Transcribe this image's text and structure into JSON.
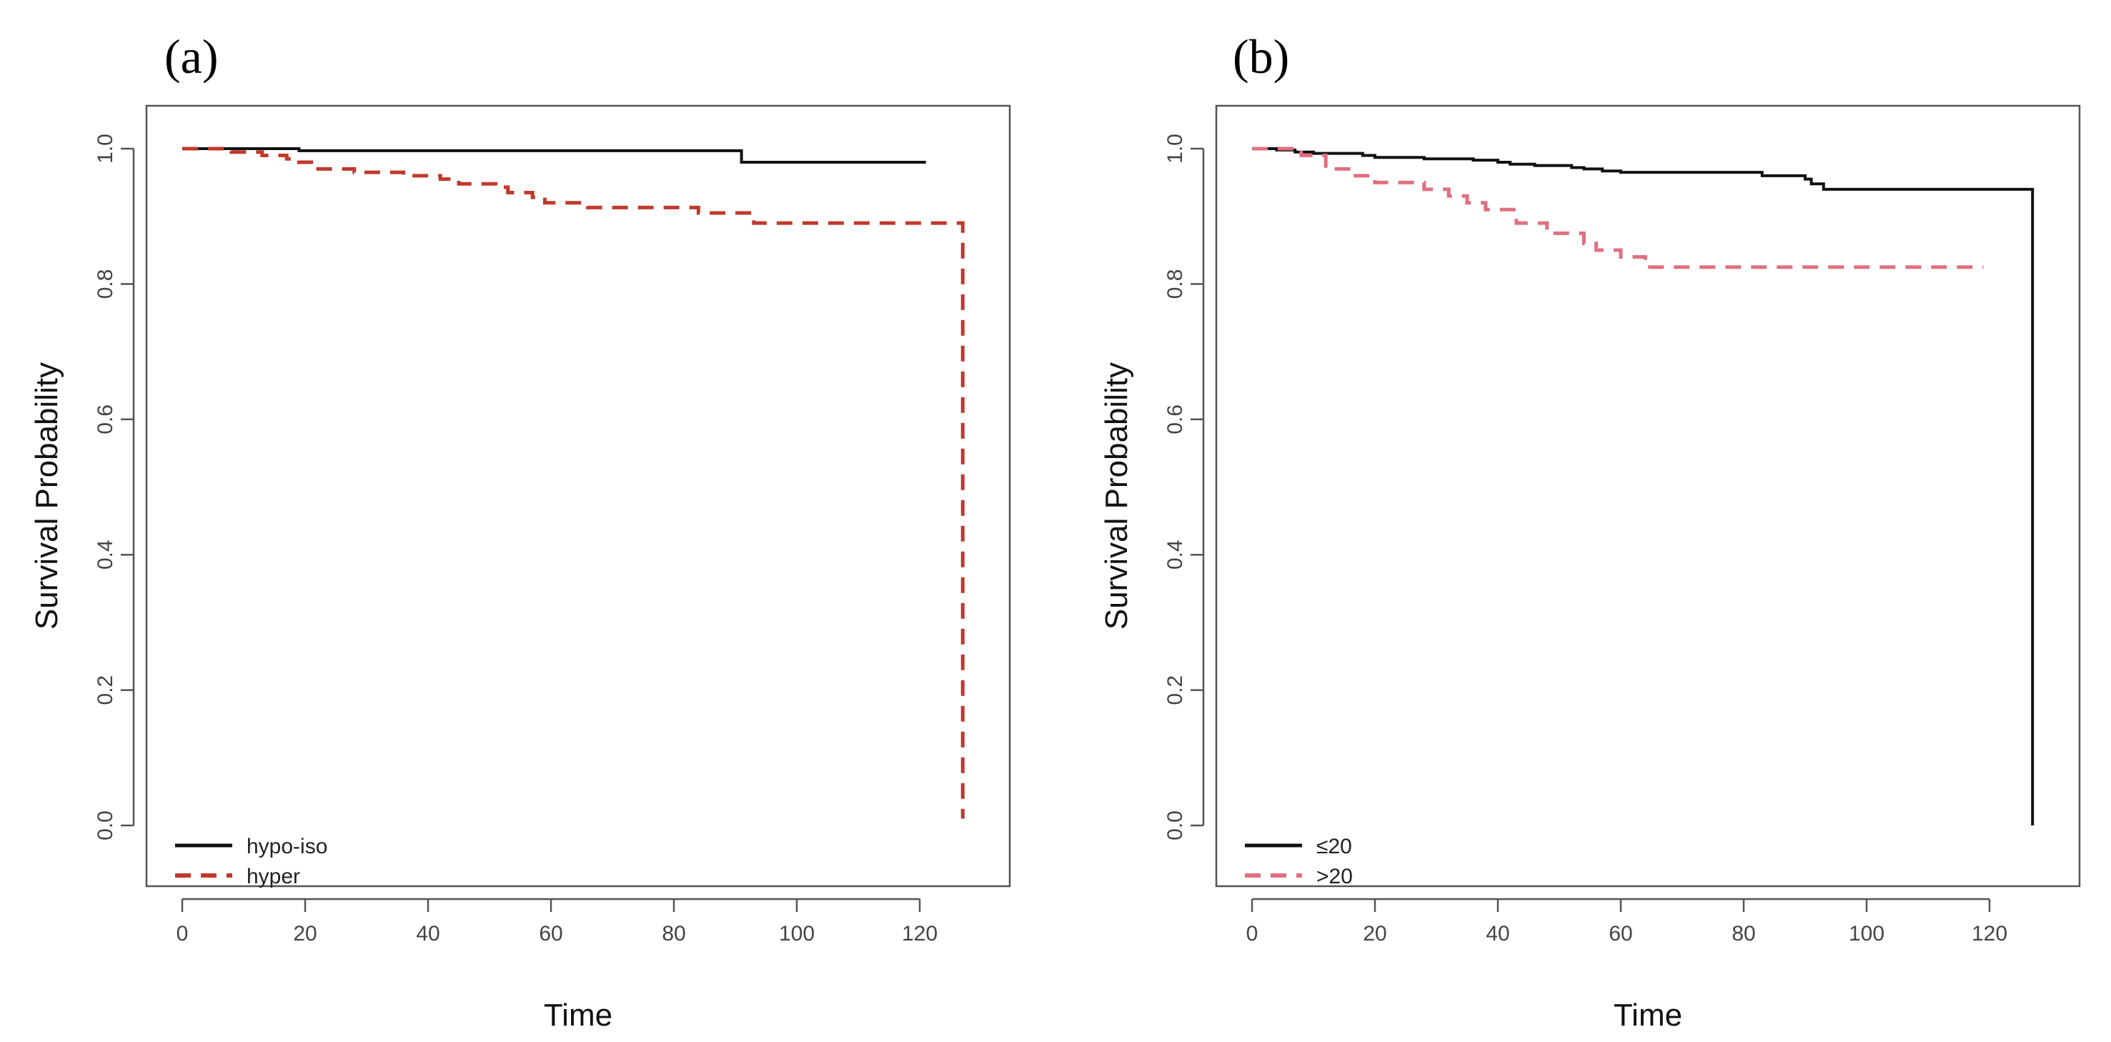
{
  "chart_data": [
    {
      "type": "line",
      "subtype": "kaplan-meier",
      "panel_label": "(a)",
      "xlabel": "Time",
      "ylabel": "Survival Probability",
      "xlim": [
        0,
        130
      ],
      "ylim": [
        0,
        1
      ],
      "xticks": [
        0,
        20,
        40,
        60,
        80,
        100,
        120
      ],
      "yticks": [
        "0.0",
        "0.2",
        "0.4",
        "0.6",
        "0.8",
        "1.0"
      ],
      "legend_position": "bottom-left",
      "series": [
        {
          "name": "hypo-iso",
          "color": "#111111",
          "dash": "solid",
          "steps": [
            [
              0,
              1.0
            ],
            [
              19,
              0.997
            ],
            [
              91,
              0.98
            ],
            [
              121,
              0.98
            ]
          ]
        },
        {
          "name": "hyper",
          "color": "#c0392b",
          "dash": "dashed",
          "steps": [
            [
              0,
              1.0
            ],
            [
              8,
              0.995
            ],
            [
              13,
              0.99
            ],
            [
              17,
              0.985
            ],
            [
              19,
              0.98
            ],
            [
              21,
              0.97
            ],
            [
              28,
              0.965
            ],
            [
              36,
              0.96
            ],
            [
              42,
              0.955
            ],
            [
              45,
              0.948
            ],
            [
              51,
              0.943
            ],
            [
              53,
              0.935
            ],
            [
              57,
              0.928
            ],
            [
              59,
              0.92
            ],
            [
              66,
              0.913
            ],
            [
              84,
              0.905
            ],
            [
              93,
              0.89
            ],
            [
              127,
              0.89
            ],
            [
              127,
              0.01
            ]
          ]
        }
      ]
    },
    {
      "type": "line",
      "subtype": "kaplan-meier",
      "panel_label": "(b)",
      "xlabel": "Time",
      "ylabel": "Survival Probability",
      "xlim": [
        0,
        130
      ],
      "ylim": [
        0,
        1
      ],
      "xticks": [
        0,
        20,
        40,
        60,
        80,
        100,
        120
      ],
      "yticks": [
        "0.0",
        "0.2",
        "0.4",
        "0.6",
        "0.8",
        "1.0"
      ],
      "legend_position": "bottom-left",
      "series": [
        {
          "name": "≤20",
          "color": "#111111",
          "dash": "solid",
          "steps": [
            [
              0,
              1.0
            ],
            [
              4,
              0.998
            ],
            [
              7,
              0.995
            ],
            [
              10,
              0.993
            ],
            [
              18,
              0.99
            ],
            [
              20,
              0.987
            ],
            [
              28,
              0.985
            ],
            [
              36,
              0.983
            ],
            [
              40,
              0.98
            ],
            [
              42,
              0.977
            ],
            [
              46,
              0.975
            ],
            [
              52,
              0.972
            ],
            [
              54,
              0.97
            ],
            [
              57,
              0.967
            ],
            [
              60,
              0.965
            ],
            [
              83,
              0.96
            ],
            [
              90,
              0.955
            ],
            [
              91,
              0.948
            ],
            [
              93,
              0.94
            ],
            [
              127,
              0.94
            ],
            [
              127,
              0.0
            ]
          ]
        },
        {
          "name": ">20",
          "color": "#e07080",
          "dash": "dashed",
          "steps": [
            [
              0,
              1.0
            ],
            [
              8,
              0.99
            ],
            [
              12,
              0.97
            ],
            [
              16,
              0.96
            ],
            [
              20,
              0.95
            ],
            [
              28,
              0.94
            ],
            [
              32,
              0.93
            ],
            [
              35,
              0.92
            ],
            [
              38,
              0.91
            ],
            [
              43,
              0.89
            ],
            [
              48,
              0.875
            ],
            [
              54,
              0.86
            ],
            [
              56,
              0.85
            ],
            [
              60,
              0.84
            ],
            [
              64,
              0.825
            ],
            [
              119,
              0.825
            ]
          ]
        }
      ]
    }
  ]
}
